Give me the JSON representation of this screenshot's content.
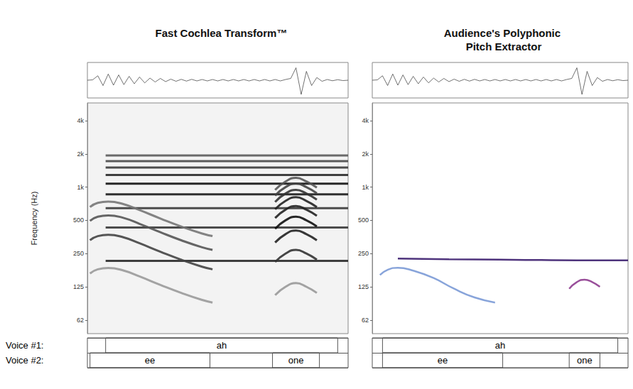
{
  "row_labels": [
    "Voice #1:",
    "Voice #2:"
  ],
  "chart_data": [
    {
      "type": "line",
      "title": "Fast Cochlea Transform™",
      "y_label": "Frequency (Hz)",
      "log": "y",
      "grid": false,
      "tick_labels": "y",
      "xlim": [
        0,
        100
      ],
      "ylim": [
        47,
        5800
      ],
      "yticks": [
        62,
        125,
        250,
        500,
        {
          "value": 1000,
          "label": "1k"
        },
        {
          "value": 2000,
          "label": "2k"
        },
        {
          "value": 4000,
          "label": "4k"
        }
      ],
      "waveform": {
        "ylim": [
          -1,
          1
        ],
        "x": [
          0,
          2,
          4,
          6,
          8,
          10,
          12,
          14,
          16,
          18,
          20,
          22,
          24,
          26,
          28,
          30,
          32,
          34,
          36,
          38,
          40,
          42,
          44,
          46,
          48,
          50,
          52,
          54,
          56,
          58,
          60,
          62,
          64,
          66,
          68,
          70,
          72,
          74,
          76,
          78,
          80,
          82,
          84,
          86,
          88,
          90,
          92,
          94,
          96,
          98,
          100
        ],
        "values": [
          0,
          0.02,
          0.25,
          -0.3,
          0.35,
          -0.28,
          0.3,
          -0.25,
          0.22,
          -0.2,
          0.18,
          -0.15,
          0.12,
          -0.1,
          0.1,
          -0.08,
          0.06,
          -0.06,
          0.05,
          -0.05,
          0.05,
          -0.04,
          0.04,
          -0.04,
          0.04,
          -0.04,
          0.04,
          -0.04,
          0.04,
          -0.04,
          0.04,
          -0.04,
          0.04,
          -0.04,
          0.04,
          -0.04,
          0.04,
          -0.04,
          0.04,
          0.1,
          0.7,
          -0.8,
          0.5,
          -0.3,
          0.15,
          -0.06,
          0.04,
          -0.03,
          0.03,
          -0.02,
          0
        ]
      },
      "voices": [
        [
          {
            "start": 7,
            "end": 96,
            "text": "ah"
          }
        ],
        [
          {
            "start": 1,
            "end": 47,
            "text": "ee"
          },
          {
            "start": 71,
            "end": 89,
            "text": "one"
          }
        ]
      ],
      "series": [
        {
          "color": "#2a2a2a",
          "x": [
            7,
            100
          ],
          "values": [
            215,
            215
          ]
        },
        {
          "color": "#3a3a3a",
          "x": [
            7,
            100
          ],
          "values": [
            430,
            430
          ]
        },
        {
          "color": "#3a3a3a",
          "x": [
            7,
            100
          ],
          "values": [
            645,
            645
          ]
        },
        {
          "color": "#1a1a1a",
          "x": [
            7,
            100
          ],
          "values": [
            860,
            860
          ]
        },
        {
          "color": "#111111",
          "x": [
            7,
            100
          ],
          "values": [
            1075,
            1075
          ]
        },
        {
          "color": "#2a2a2a",
          "x": [
            7,
            100
          ],
          "values": [
            1290,
            1290
          ]
        },
        {
          "color": "#3a3a3a",
          "x": [
            7,
            100
          ],
          "values": [
            1505,
            1505
          ]
        },
        {
          "color": "#4a4a4a",
          "x": [
            7,
            100
          ],
          "values": [
            1720,
            1720
          ]
        },
        {
          "color": "#5a5a5a",
          "x": [
            7,
            100
          ],
          "values": [
            1935,
            1935
          ]
        },
        {
          "color": "#9a9a9a",
          "x": [
            1,
            4,
            8,
            14,
            20,
            28,
            36,
            44,
            48
          ],
          "values": [
            165,
            180,
            185,
            175,
            155,
            130,
            110,
            95,
            90
          ]
        },
        {
          "color": "#444444",
          "x": [
            1,
            4,
            8,
            14,
            20,
            28,
            36,
            44,
            48
          ],
          "values": [
            330,
            360,
            370,
            350,
            310,
            260,
            220,
            190,
            180
          ]
        },
        {
          "color": "#555555",
          "x": [
            1,
            4,
            8,
            14,
            20,
            28,
            36,
            44,
            48
          ],
          "values": [
            495,
            540,
            555,
            525,
            465,
            390,
            330,
            285,
            270
          ]
        },
        {
          "color": "#777777",
          "x": [
            1,
            4,
            8,
            14,
            20,
            28,
            36,
            44,
            48
          ],
          "values": [
            660,
            720,
            740,
            700,
            620,
            520,
            440,
            380,
            360
          ]
        },
        {
          "color": "#999999",
          "x": [
            72,
            76,
            80,
            84,
            88
          ],
          "values": [
            105,
            125,
            135,
            125,
            110
          ]
        },
        {
          "color": "#333333",
          "x": [
            72,
            76,
            80,
            84,
            88
          ],
          "values": [
            210,
            250,
            270,
            250,
            220
          ]
        },
        {
          "color": "#222222",
          "x": [
            72,
            76,
            80,
            84,
            88
          ],
          "values": [
            315,
            375,
            405,
            375,
            330
          ]
        },
        {
          "color": "#111111",
          "x": [
            72,
            76,
            80,
            84,
            88
          ],
          "values": [
            420,
            500,
            540,
            500,
            440
          ]
        },
        {
          "color": "#222222",
          "x": [
            72,
            76,
            80,
            84,
            88
          ],
          "values": [
            525,
            625,
            675,
            625,
            550
          ]
        },
        {
          "color": "#222222",
          "x": [
            72,
            76,
            80,
            84,
            88
          ],
          "values": [
            630,
            750,
            810,
            750,
            660
          ]
        },
        {
          "color": "#333333",
          "x": [
            72,
            76,
            80,
            84,
            88
          ],
          "values": [
            735,
            875,
            945,
            875,
            770
          ]
        },
        {
          "color": "#444444",
          "x": [
            72,
            76,
            80,
            84,
            88
          ],
          "values": [
            840,
            1000,
            1080,
            1000,
            880
          ]
        },
        {
          "color": "#555555",
          "x": [
            72,
            76,
            80,
            84,
            88
          ],
          "values": [
            945,
            1125,
            1215,
            1125,
            990
          ]
        }
      ]
    },
    {
      "type": "line",
      "title": "Audience's Polyphonic Pitch Extractor",
      "log": "y",
      "grid": false,
      "tick_labels": "y",
      "xlim": [
        0,
        100
      ],
      "ylim": [
        47,
        5800
      ],
      "yticks": [
        62,
        125,
        250,
        500,
        {
          "value": 1000,
          "label": "1k"
        },
        {
          "value": 2000,
          "label": "2k"
        },
        {
          "value": 4000,
          "label": "4k"
        }
      ],
      "waveform": {
        "ylim": [
          -1,
          1
        ],
        "x": [
          0,
          2,
          4,
          6,
          8,
          10,
          12,
          14,
          16,
          18,
          20,
          22,
          24,
          26,
          28,
          30,
          32,
          34,
          36,
          38,
          40,
          42,
          44,
          46,
          48,
          50,
          52,
          54,
          56,
          58,
          60,
          62,
          64,
          66,
          68,
          70,
          72,
          74,
          76,
          78,
          80,
          82,
          84,
          86,
          88,
          90,
          92,
          94,
          96,
          98,
          100
        ],
        "values": [
          0,
          0.02,
          0.25,
          -0.3,
          0.35,
          -0.28,
          0.3,
          -0.25,
          0.22,
          -0.2,
          0.18,
          -0.15,
          0.12,
          -0.1,
          0.1,
          -0.08,
          0.06,
          -0.06,
          0.05,
          -0.05,
          0.05,
          -0.04,
          0.04,
          -0.04,
          0.04,
          -0.04,
          0.04,
          -0.04,
          0.04,
          -0.04,
          0.04,
          -0.04,
          0.04,
          -0.04,
          0.04,
          -0.04,
          0.04,
          -0.04,
          0.04,
          0.1,
          0.7,
          -0.8,
          0.5,
          -0.3,
          0.15,
          -0.06,
          0.04,
          -0.03,
          0.03,
          -0.02,
          0
        ]
      },
      "voices": [
        [
          {
            "start": 4,
            "end": 96,
            "text": "ah"
          }
        ],
        [
          {
            "start": 4,
            "end": 51,
            "text": "ee"
          },
          {
            "start": 77,
            "end": 89,
            "text": "one"
          }
        ]
      ],
      "series": [
        {
          "color": "#3b1d6e",
          "x": [
            10,
            30,
            50,
            70,
            90,
            100
          ],
          "values": [
            225,
            222,
            220,
            218,
            217,
            217
          ]
        },
        {
          "color": "#7b9ad6",
          "x": [
            3,
            6,
            10,
            16,
            24,
            32,
            40,
            48
          ],
          "values": [
            160,
            178,
            186,
            175,
            150,
            120,
            100,
            90
          ]
        },
        {
          "color": "#8e3c8f",
          "x": [
            77,
            80,
            83,
            86,
            89
          ],
          "values": [
            120,
            138,
            145,
            138,
            125
          ]
        }
      ]
    }
  ]
}
